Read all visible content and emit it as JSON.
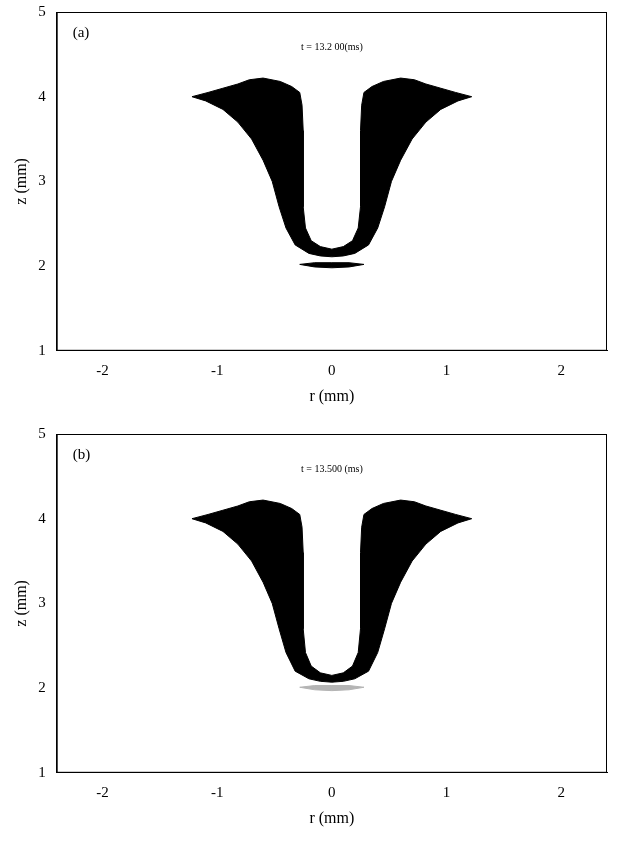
{
  "chart_data": [
    {
      "type": "area",
      "title": "t = 13.2 00(ms)",
      "annotations": [
        "(a)"
      ],
      "x_label": "r (mm)",
      "y_label": "z (mm)",
      "xlim": [
        -2.4,
        2.4
      ],
      "xticks": [
        -2,
        -1,
        0,
        1,
        2
      ],
      "ylim": [
        1,
        5
      ],
      "yticks": [
        1,
        2,
        3,
        4,
        5
      ],
      "grid": false,
      "series": [
        {
          "color": "#000000",
          "x": [
            0,
            0.1,
            0.18,
            0.23,
            0.25,
            0.25,
            0.25,
            0.26,
            0.28,
            0.35,
            0.45,
            0.6,
            0.72,
            0.82,
            0.95,
            1.08,
            1.22,
            1.1,
            0.95,
            0.82,
            0.7,
            0.6,
            0.52,
            0.46,
            0.4,
            0.32,
            0.2,
            0.1,
            0,
            -0.1,
            -0.2,
            -0.32,
            -0.4,
            -0.46,
            -0.52,
            -0.6,
            -0.7,
            -0.82,
            -0.95,
            -1.1,
            -1.22,
            -1.08,
            -0.95,
            -0.82,
            -0.72,
            -0.6,
            -0.45,
            -0.35,
            -0.28,
            -0.26,
            -0.25,
            -0.25,
            -0.25,
            -0.23,
            -0.18,
            -0.1,
            0
          ],
          "values": [
            2.2,
            2.23,
            2.3,
            2.45,
            2.7,
            3.2,
            3.6,
            3.9,
            4.05,
            4.12,
            4.18,
            4.22,
            4.2,
            4.15,
            4.1,
            4.05,
            4.0,
            3.95,
            3.85,
            3.7,
            3.5,
            3.25,
            3.0,
            2.7,
            2.45,
            2.25,
            2.15,
            2.12,
            2.11,
            2.12,
            2.15,
            2.25,
            2.45,
            2.7,
            3.0,
            3.25,
            3.5,
            3.7,
            3.85,
            3.95,
            4.0,
            4.05,
            4.1,
            4.15,
            4.2,
            4.22,
            4.18,
            4.12,
            4.05,
            3.9,
            3.6,
            3.2,
            2.7,
            2.45,
            2.3,
            2.23,
            2.2
          ]
        },
        {
          "color": "#000000",
          "x": [
            -0.28,
            -0.15,
            0,
            0.15,
            0.28,
            0.15,
            0,
            -0.15,
            -0.28
          ],
          "values": [
            2.02,
            2.04,
            2.04,
            2.04,
            2.02,
            1.99,
            1.98,
            1.99,
            2.02
          ]
        }
      ]
    },
    {
      "type": "area",
      "title": "t = 13.500 (ms)",
      "annotations": [
        "(b)"
      ],
      "x_label": "r (mm)",
      "y_label": "z (mm)",
      "xlim": [
        -2.4,
        2.4
      ],
      "xticks": [
        -2,
        -1,
        0,
        1,
        2
      ],
      "ylim": [
        1,
        5
      ],
      "yticks": [
        1,
        2,
        3,
        4,
        5
      ],
      "grid": false,
      "series": [
        {
          "color": "#000000",
          "x": [
            0,
            0.1,
            0.18,
            0.23,
            0.25,
            0.25,
            0.25,
            0.26,
            0.28,
            0.35,
            0.45,
            0.6,
            0.72,
            0.82,
            0.95,
            1.08,
            1.22,
            1.1,
            0.95,
            0.82,
            0.7,
            0.6,
            0.52,
            0.46,
            0.4,
            0.32,
            0.2,
            0.1,
            0,
            -0.1,
            -0.2,
            -0.32,
            -0.4,
            -0.46,
            -0.52,
            -0.6,
            -0.7,
            -0.82,
            -0.95,
            -1.1,
            -1.22,
            -1.08,
            -0.95,
            -0.82,
            -0.72,
            -0.6,
            -0.45,
            -0.35,
            -0.28,
            -0.26,
            -0.25,
            -0.25,
            -0.25,
            -0.23,
            -0.18,
            -0.1,
            0
          ],
          "values": [
            2.15,
            2.18,
            2.26,
            2.42,
            2.7,
            3.2,
            3.6,
            3.9,
            4.05,
            4.12,
            4.18,
            4.22,
            4.2,
            4.15,
            4.1,
            4.05,
            4.0,
            3.95,
            3.85,
            3.7,
            3.5,
            3.25,
            3.0,
            2.7,
            2.42,
            2.2,
            2.11,
            2.08,
            2.07,
            2.08,
            2.11,
            2.2,
            2.42,
            2.7,
            3.0,
            3.25,
            3.5,
            3.7,
            3.85,
            3.95,
            4.0,
            4.05,
            4.1,
            4.15,
            4.2,
            4.22,
            4.18,
            4.12,
            4.05,
            3.9,
            3.6,
            3.2,
            2.7,
            2.42,
            2.26,
            2.18,
            2.15
          ]
        },
        {
          "color": "#b4b4b4",
          "x": [
            -0.28,
            -0.15,
            0,
            0.15,
            0.28,
            0.15,
            0,
            -0.15,
            -0.28
          ],
          "values": [
            2.01,
            2.03,
            2.03,
            2.03,
            2.01,
            1.98,
            1.97,
            1.98,
            2.01
          ]
        }
      ]
    }
  ]
}
